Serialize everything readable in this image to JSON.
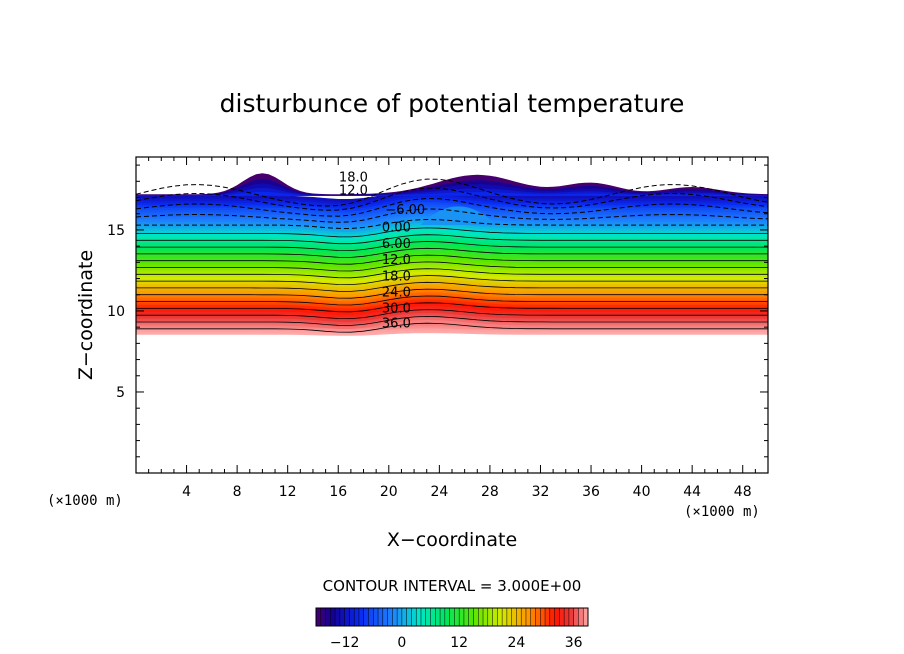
{
  "chart_data": {
    "type": "contour",
    "title": "disturbunce of potential temperature",
    "xlabel": "X−coordinate",
    "ylabel": "Z−coordinate",
    "x_unit": "(×1000 m)",
    "y_unit": "(×1000 m)",
    "xlim": [
      0,
      50
    ],
    "ylim": [
      0,
      19.5
    ],
    "x_ticks": [
      "4",
      "8",
      "12",
      "16",
      "20",
      "24",
      "28",
      "32",
      "36",
      "40",
      "44",
      "48"
    ],
    "y_ticks": [
      "5",
      "10",
      "15"
    ],
    "contour_interval_text": "CONTOUR INTERVAL = 3.000E+00",
    "contour_labels": [
      "18.0",
      "12.0",
      "−6.00",
      "0.00",
      "6.00",
      "12.0",
      "18.0",
      "24.0",
      "30.0",
      "36.0"
    ],
    "colorbar": {
      "min": -18,
      "max": 39,
      "tick_labels": [
        "−12",
        "0",
        "12",
        "24",
        "36"
      ],
      "tick_values": [
        -12,
        0,
        12,
        24,
        36
      ]
    },
    "field_summary": [
      {
        "z": 8.7,
        "value": 39
      },
      {
        "z": 9.5,
        "value": 36
      },
      {
        "z": 10.5,
        "value": 30
      },
      {
        "z": 11.5,
        "value": 24
      },
      {
        "z": 12.5,
        "value": 18
      },
      {
        "z": 13.5,
        "value": 12
      },
      {
        "z": 14.4,
        "value": 6
      },
      {
        "z": 15.2,
        "value": 0
      },
      {
        "z": 16.3,
        "value": -6
      },
      {
        "z": 17.0,
        "value": -12
      },
      {
        "z": 18.0,
        "value": -18
      }
    ]
  }
}
